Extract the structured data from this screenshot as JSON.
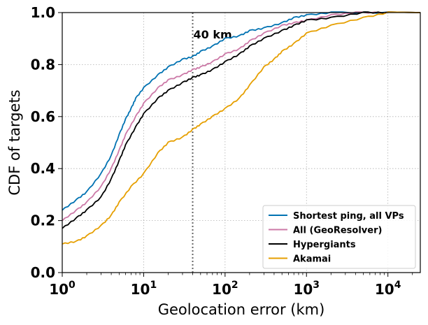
{
  "chart_data": {
    "type": "line",
    "xlabel": "Geolocation error (km)",
    "ylabel": "CDF of targets",
    "xscale": "log",
    "xlim": [
      1,
      25000
    ],
    "ylim": [
      0,
      1
    ],
    "x_ticks": [
      1,
      10,
      100,
      1000,
      10000
    ],
    "x_tick_labels": [
      {
        "base": "10",
        "exp": "0"
      },
      {
        "base": "10",
        "exp": "1"
      },
      {
        "base": "10",
        "exp": "2"
      },
      {
        "base": "10",
        "exp": "3"
      },
      {
        "base": "10",
        "exp": "4"
      }
    ],
    "y_ticks": [
      0,
      0.2,
      0.4,
      0.6,
      0.8,
      1.0
    ],
    "y_tick_labels": [
      "0.0",
      "0.2",
      "0.4",
      "0.6",
      "0.8",
      "1.0"
    ],
    "grid": true,
    "legend_position": "bottom-right",
    "annotation": {
      "x": 40,
      "label": "40 km",
      "style": "dotted vertical line"
    },
    "series": [
      {
        "name": "Shortest ping, all VPs",
        "color": "#0072b2",
        "points": [
          [
            1,
            0.24
          ],
          [
            1.5,
            0.28
          ],
          [
            2,
            0.31
          ],
          [
            3,
            0.38
          ],
          [
            4,
            0.45
          ],
          [
            5,
            0.53
          ],
          [
            6,
            0.59
          ],
          [
            7,
            0.63
          ],
          [
            8,
            0.67
          ],
          [
            10,
            0.71
          ],
          [
            15,
            0.76
          ],
          [
            20,
            0.79
          ],
          [
            30,
            0.82
          ],
          [
            40,
            0.83
          ],
          [
            50,
            0.85
          ],
          [
            70,
            0.87
          ],
          [
            100,
            0.9
          ],
          [
            150,
            0.91
          ],
          [
            200,
            0.93
          ],
          [
            300,
            0.94
          ],
          [
            500,
            0.96
          ],
          [
            700,
            0.98
          ],
          [
            1000,
            0.99
          ],
          [
            2000,
            1.0
          ],
          [
            10000,
            1.0
          ]
        ]
      },
      {
        "name": "All (GeoResolver)",
        "color": "#cc79a7",
        "points": [
          [
            1,
            0.2
          ],
          [
            1.5,
            0.24
          ],
          [
            2,
            0.27
          ],
          [
            3,
            0.33
          ],
          [
            4,
            0.4
          ],
          [
            5,
            0.47
          ],
          [
            6,
            0.53
          ],
          [
            8,
            0.6
          ],
          [
            10,
            0.65
          ],
          [
            15,
            0.71
          ],
          [
            20,
            0.74
          ],
          [
            30,
            0.76
          ],
          [
            40,
            0.78
          ],
          [
            50,
            0.79
          ],
          [
            70,
            0.81
          ],
          [
            100,
            0.84
          ],
          [
            150,
            0.86
          ],
          [
            200,
            0.89
          ],
          [
            300,
            0.92
          ],
          [
            500,
            0.95
          ],
          [
            700,
            0.96
          ],
          [
            1000,
            0.97
          ],
          [
            2000,
            0.99
          ],
          [
            4000,
            1.0
          ],
          [
            10000,
            1.0
          ]
        ]
      },
      {
        "name": "Hypergiants",
        "color": "#000000",
        "points": [
          [
            1,
            0.17
          ],
          [
            1.5,
            0.21
          ],
          [
            2,
            0.24
          ],
          [
            3,
            0.29
          ],
          [
            4,
            0.36
          ],
          [
            5,
            0.43
          ],
          [
            6,
            0.49
          ],
          [
            8,
            0.56
          ],
          [
            10,
            0.61
          ],
          [
            15,
            0.67
          ],
          [
            20,
            0.7
          ],
          [
            30,
            0.73
          ],
          [
            40,
            0.75
          ],
          [
            50,
            0.76
          ],
          [
            70,
            0.78
          ],
          [
            100,
            0.81
          ],
          [
            150,
            0.84
          ],
          [
            200,
            0.87
          ],
          [
            300,
            0.9
          ],
          [
            500,
            0.93
          ],
          [
            700,
            0.95
          ],
          [
            1000,
            0.97
          ],
          [
            2000,
            0.98
          ],
          [
            5000,
            1.0
          ],
          [
            10000,
            1.0
          ]
        ]
      },
      {
        "name": "Akamai",
        "color": "#e69f00",
        "points": [
          [
            1,
            0.11
          ],
          [
            1.5,
            0.12
          ],
          [
            2,
            0.14
          ],
          [
            3,
            0.18
          ],
          [
            4,
            0.22
          ],
          [
            5,
            0.27
          ],
          [
            7,
            0.33
          ],
          [
            10,
            0.38
          ],
          [
            15,
            0.46
          ],
          [
            20,
            0.5
          ],
          [
            30,
            0.52
          ],
          [
            40,
            0.55
          ],
          [
            50,
            0.57
          ],
          [
            70,
            0.6
          ],
          [
            100,
            0.63
          ],
          [
            150,
            0.67
          ],
          [
            200,
            0.72
          ],
          [
            300,
            0.79
          ],
          [
            400,
            0.82
          ],
          [
            500,
            0.85
          ],
          [
            700,
            0.88
          ],
          [
            1000,
            0.92
          ],
          [
            2000,
            0.95
          ],
          [
            5000,
            0.98
          ],
          [
            10000,
            1.0
          ]
        ]
      }
    ]
  }
}
